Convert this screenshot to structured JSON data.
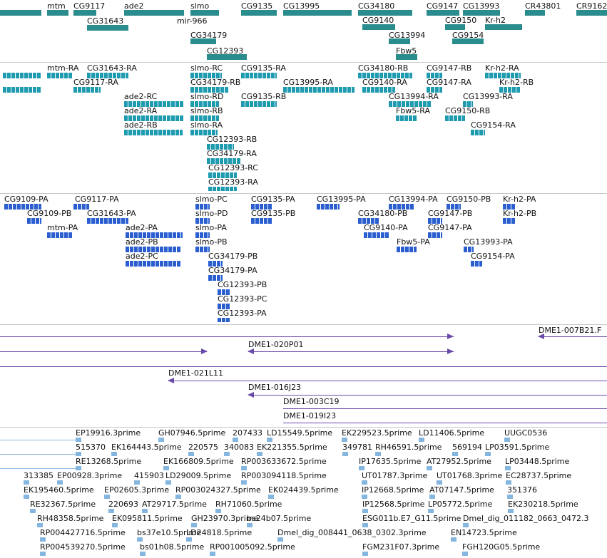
{
  "tracks": {
    "genes": [
      "mtm",
      "CG9117",
      "ade2",
      "slmo",
      "CG9135",
      "CG13995",
      "CG34180",
      "CG9147",
      "CG13993",
      "CR43801",
      "CR9162",
      "CG31643",
      "mir-966",
      "CG9140",
      "CG9150",
      "Kr-h2",
      "CG34179",
      "CG13994",
      "CG9154",
      "CG12393",
      "Fbw5"
    ],
    "transcripts": [
      "mtm-RA",
      "CG31643-RA",
      "slmo-RC",
      "CG9135-RA",
      "CG34180-RB",
      "CG9147-RB",
      "Kr-h2-RA",
      "CG9117-RA",
      "CG34179-RB",
      "CG13995-RA",
      "CG9140-RA",
      "CG9147-RA",
      "Kr-h2-RB",
      "ade2-RC",
      "slmo-RD",
      "CG9135-RB",
      "CG13994-RA",
      "CG13993-RA",
      "ade2-RA",
      "slmo-RB",
      "Fbw5-RA",
      "CG9150-RB",
      "ade2-RB",
      "slmo-RA",
      "CG9154-RA",
      "CG12393-RB",
      "CG34179-RA",
      "CG12393-RC",
      "CG12393-RA"
    ],
    "proteins": [
      "CG9109-PA",
      "CG9117-PA",
      "slmo-PC",
      "CG9135-PA",
      "CG13995-PA",
      "CG13994-PA",
      "CG9150-PB",
      "Kr-h2-PA",
      "CG9109-PB",
      "CG31643-PA",
      "slmo-PD",
      "CG9135-PB",
      "CG34180-PB",
      "CG9147-PB",
      "Kr-h2-PB",
      "mtm-PA",
      "ade2-PA",
      "slmo-PA",
      "CG9140-PA",
      "CG9147-PA",
      "ade2-PB",
      "slmo-PB",
      "Fbw5-PA",
      "CG13993-PA",
      "ade2-PC",
      "CG34179-PB",
      "CG9154-PA",
      "CG34179-PA",
      "CG12393-PB",
      "CG12393-PC",
      "CG12393-PA"
    ],
    "clones": [
      "DME1-007B21.F",
      "DME1-020P01",
      "DME1-021L11",
      "DME1-016J23",
      "DME1-003C19",
      "DME1-019I23"
    ],
    "ests": [
      "EP19916.3prime",
      "GH07946.5prime",
      "207433",
      "LD15549.5prime",
      "EK229523.5prime",
      "LD11406.5prime",
      "UUGC0536",
      "515370",
      "EK164443.5prime",
      "220575",
      "340083",
      "EK221355.5prime",
      "349781",
      "RH46591.5prime",
      "569194",
      "LP03591.5prime",
      "RE13268.5prime",
      "EK166809.5prime",
      "RP003633672.5prime",
      "IP17635.5prime",
      "AT27952.5prime",
      "LP03448.5prime",
      "313385",
      "EP00928.3prime",
      "415903",
      "LD29009.5prime",
      "RP003094118.5prime",
      "UT01787.3prime",
      "UT01768.3prime",
      "EC28737.5prime",
      "EK195460.5prime",
      "EP02605.3prime",
      "RP003024327.5prime",
      "EK024439.5prime",
      "IP12668.5prime",
      "AT07147.5prime",
      "351376",
      "RE32367.5prime",
      "220693",
      "AT29717.5prime",
      "RH71060.5prime",
      "IP12568.5prime",
      "LP05772.5prime",
      "EK230218.5prime",
      "RH48358.5prime",
      "EK095811.5prime",
      "GH23970.3prime",
      "bs24b07.5prime",
      "ESG011b.E7_G11.5prime",
      "Dmel_dig_011182_0663_0472.3",
      "RP004427716.5prime",
      "bs37e10.5prime",
      "LD24818.5prime",
      "Dmel_dig_008441_0638_0302.3prime",
      "EN14723.5prime",
      "RP004539270.5prime",
      "bs01h08.5prime",
      "RP001005092.5prime",
      "FGM231F07.3prime",
      "FGH120G05.5prime"
    ]
  },
  "colors": {
    "gene": "#2a8c8c",
    "transcript": "#1f9bb0",
    "protein": "#2b5fd0",
    "clone": "#6a4aa8",
    "est": "#84b6e0"
  }
}
